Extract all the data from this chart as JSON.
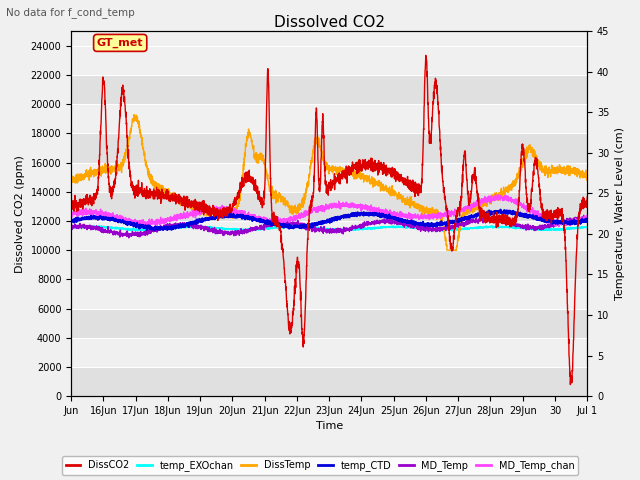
{
  "title": "Dissolved CO2",
  "subtitle": "No data for f_cond_temp",
  "xlabel": "Time",
  "ylabel_left": "Dissolved CO2 (ppm)",
  "ylabel_right": "Temperature, Water Level (cm)",
  "ylim_left": [
    0,
    25000
  ],
  "ylim_right": [
    0,
    45
  ],
  "yticks_left": [
    0,
    2000,
    4000,
    6000,
    8000,
    10000,
    12000,
    14000,
    16000,
    18000,
    20000,
    22000,
    24000
  ],
  "yticks_right": [
    0,
    5,
    10,
    15,
    20,
    25,
    30,
    35,
    40,
    45
  ],
  "background_color": "#f0f0f0",
  "plot_bg_color": "#f0f0f0",
  "stripe_color": "#e0e0e0",
  "gt_met_label": "GT_met",
  "gt_met_color": "#cc0000",
  "gt_met_bg": "#ffff99",
  "legend_entries": [
    {
      "label": "DissCO2",
      "color": "#dd0000",
      "lw": 1.0
    },
    {
      "label": "temp_EXOchan",
      "color": "#00ffff",
      "lw": 1.0
    },
    {
      "label": "DissTemp",
      "color": "#ffa500",
      "lw": 1.0
    },
    {
      "label": "temp_CTD",
      "color": "#0000dd",
      "lw": 1.5
    },
    {
      "label": "MD_Temp",
      "color": "#9900cc",
      "lw": 1.0
    },
    {
      "label": "MD_Temp_chan",
      "color": "#ff44ff",
      "lw": 1.0
    }
  ],
  "xtick_labels": [
    "Jun",
    "16Jun",
    "17Jun",
    "18Jun",
    "19Jun",
    "20Jun",
    "21Jun",
    "22Jun",
    "23Jun",
    "24Jun",
    "25Jun",
    "26Jun",
    "27Jun",
    "28Jun",
    "29Jun",
    "30",
    "Jul 1"
  ]
}
